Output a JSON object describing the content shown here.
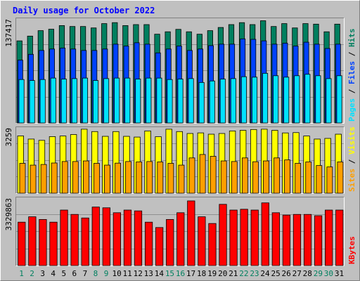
{
  "chart_data": {
    "type": "bar",
    "title": "Daily usage for October 2022",
    "categories": [
      "1",
      "2",
      "3",
      "4",
      "5",
      "6",
      "7",
      "8",
      "9",
      "10",
      "11",
      "12",
      "13",
      "14",
      "15",
      "16",
      "17",
      "18",
      "19",
      "20",
      "21",
      "22",
      "23",
      "24",
      "25",
      "26",
      "27",
      "28",
      "29",
      "30",
      "31"
    ],
    "weekend_days": [
      "1",
      "2",
      "8",
      "9",
      "15",
      "16",
      "22",
      "23",
      "29",
      "30"
    ],
    "panels": [
      {
        "name": "hits-files-pages",
        "ymax_label": "137417",
        "ylim": [
          0,
          137417
        ],
        "legend": [
          "Pages",
          "Files",
          "Hits"
        ],
        "series": [
          {
            "name": "Hits",
            "color": "#007f5f",
            "values": [
              108500,
              114800,
              122000,
              123900,
              128700,
              127500,
              127500,
              125600,
              131300,
              132600,
              128700,
              130000,
              130000,
              117300,
              120500,
              123700,
              120500,
              117300,
              122000,
              126200,
              130000,
              132600,
              130000,
              135100,
              127500,
              131300,
              125600,
              131300,
              130600,
              120500,
              130600
            ]
          },
          {
            "name": "Files",
            "color": "#0042ff",
            "values": [
              83000,
              90700,
              95800,
              97700,
              99000,
              97700,
              95800,
              95800,
              97700,
              104100,
              101600,
              106000,
              104100,
              92600,
              97700,
              101600,
              95800,
              97700,
              102200,
              104100,
              104100,
              111100,
              110500,
              108500,
              104100,
              105400,
              101600,
              106700,
              104100,
              98400,
              104100
            ]
          },
          {
            "name": "Pages",
            "color": "#00e1ff",
            "values": [
              57400,
              56100,
              57400,
              59300,
              58000,
              58600,
              59300,
              56100,
              58600,
              59300,
              59300,
              58000,
              59300,
              59300,
              57400,
              58000,
              58600,
              53500,
              55500,
              58000,
              58600,
              61100,
              60500,
              65600,
              62400,
              60500,
              62400,
              64300,
              62400,
              58600,
              62400
            ]
          }
        ]
      },
      {
        "name": "visits-sites",
        "ymax_label": "3259",
        "ylim": [
          0,
          3259
        ],
        "legend": [
          "Sites",
          "Visits"
        ],
        "series": [
          {
            "name": "Visits",
            "color": "#ffff00",
            "values": [
              2856,
              2700,
              2636,
              2822,
              2853,
              2926,
              3193,
              3074,
              2837,
              3074,
              2837,
              2800,
              3105,
              2817,
              3193,
              3074,
              2978,
              3008,
              2943,
              2978,
              3105,
              3135,
              3177,
              3193,
              3135,
              3006,
              3022,
              2853,
              2700,
              2733,
              2943
            ]
          },
          {
            "name": "Sites",
            "color": "#ff9f00",
            "values": [
              1490,
              1400,
              1433,
              1506,
              1580,
              1580,
              1610,
              1490,
              1400,
              1500,
              1580,
              1560,
              1580,
              1560,
              1490,
              1400,
              1760,
              1930,
              1840,
              1610,
              1580,
              1760,
              1570,
              1610,
              1760,
              1660,
              1490,
              1560,
              1380,
              1310,
              1560
            ]
          }
        ]
      },
      {
        "name": "kbytes",
        "ymax_label": "3329863",
        "ylim": [
          0,
          3329863
        ],
        "legend": [
          "KBytes"
        ],
        "series": [
          {
            "name": "KBytes",
            "color": "#ff0000",
            "values": [
              2143000,
              2409000,
              2276000,
              2143000,
              2740000,
              2525000,
              2349000,
              2889000,
              2852000,
              2608000,
              2740000,
              2699000,
              2143000,
              1878000,
              2276000,
              2608000,
              3192000,
              2409000,
              2077000,
              3023000,
              2740000,
              2780000,
              2740000,
              3095000,
              2608000,
              2492000,
              2525000,
              2525000,
              2461000,
              2740000,
              2740000
            ]
          }
        ]
      }
    ]
  }
}
